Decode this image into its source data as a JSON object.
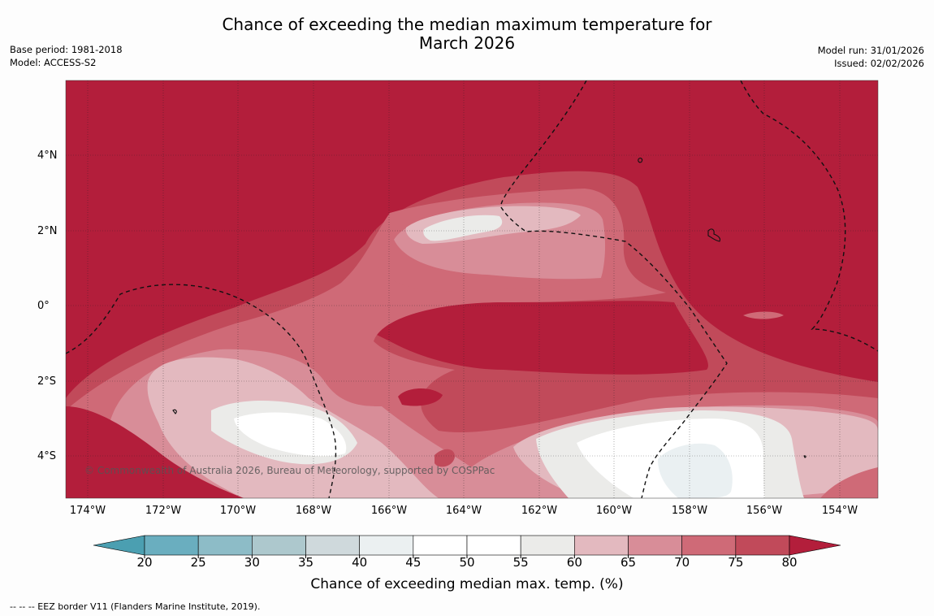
{
  "title": {
    "line1": "Chance of exceeding the median maximum temperature for",
    "line2": "March 2026"
  },
  "meta_left": {
    "base_period": "Base period: 1981-2018",
    "model": "Model: ACCESS-S2"
  },
  "meta_right": {
    "model_run": "Model run: 31/01/2026",
    "issued": "Issued: 02/02/2026"
  },
  "latitudes": [
    "4°N",
    "2°N",
    "0°",
    "2°S",
    "4°S"
  ],
  "longitudes": [
    "174°W",
    "172°W",
    "170°W",
    "168°W",
    "166°W",
    "164°W",
    "162°W",
    "160°W",
    "158°W",
    "156°W",
    "154°W"
  ],
  "colorbar": {
    "ticks": [
      "20",
      "25",
      "30",
      "35",
      "40",
      "45",
      "50",
      "55",
      "60",
      "65",
      "70",
      "75",
      "80"
    ],
    "colors": [
      "#6aaebf",
      "#8dbcc7",
      "#adc8cd",
      "#cfd9dc",
      "#ebf0f1",
      "#ffffff",
      "#ffffff",
      "#ebebe9",
      "#e3b9bf",
      "#d88d98",
      "#cf6a77",
      "#c14a5a"
    ],
    "low_color": "#4b9fb1",
    "high_color": "#b31e3b",
    "title": "Chance of exceeding median max. temp. (%)"
  },
  "legend_note": "--  --  -- EEZ border V11 (Flanders Marine Institute, 2019).",
  "copyright": "© Commonwealth of Australia 2026, Bureau of Meteorology, supported by COSPPac"
}
